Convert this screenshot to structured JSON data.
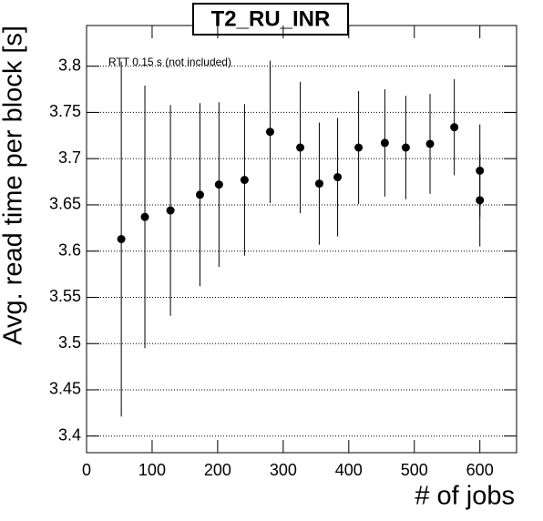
{
  "chart_data": {
    "type": "scatter",
    "title": "T2_RU_INR",
    "annotation": "RTT 0.15 s (not included)",
    "xlabel": "# of jobs",
    "ylabel": "Avg. read time per block [s]",
    "x": [
      53,
      89,
      128,
      173,
      202,
      241,
      280,
      326,
      355,
      383,
      415,
      455,
      487,
      524,
      561,
      600,
      600
    ],
    "values": [
      3.613,
      3.637,
      3.644,
      3.661,
      3.672,
      3.677,
      3.729,
      3.712,
      3.673,
      3.68,
      3.712,
      3.717,
      3.712,
      3.716,
      3.734,
      3.687,
      3.655
    ],
    "errors": [
      0.192,
      0.142,
      0.114,
      0.099,
      0.089,
      0.082,
      0.077,
      0.071,
      0.066,
      0.064,
      0.061,
      0.058,
      0.056,
      0.054,
      0.052,
      0.05,
      0.05
    ],
    "color": "#000000",
    "xlim": [
      0,
      656
    ],
    "ylim": [
      3.382,
      3.844
    ],
    "xticks": [
      0,
      100,
      200,
      300,
      400,
      500,
      600
    ],
    "yticks": [
      3.4,
      3.45,
      3.5,
      3.55,
      3.6,
      3.65,
      3.7,
      3.75,
      3.8
    ],
    "grid": true
  }
}
